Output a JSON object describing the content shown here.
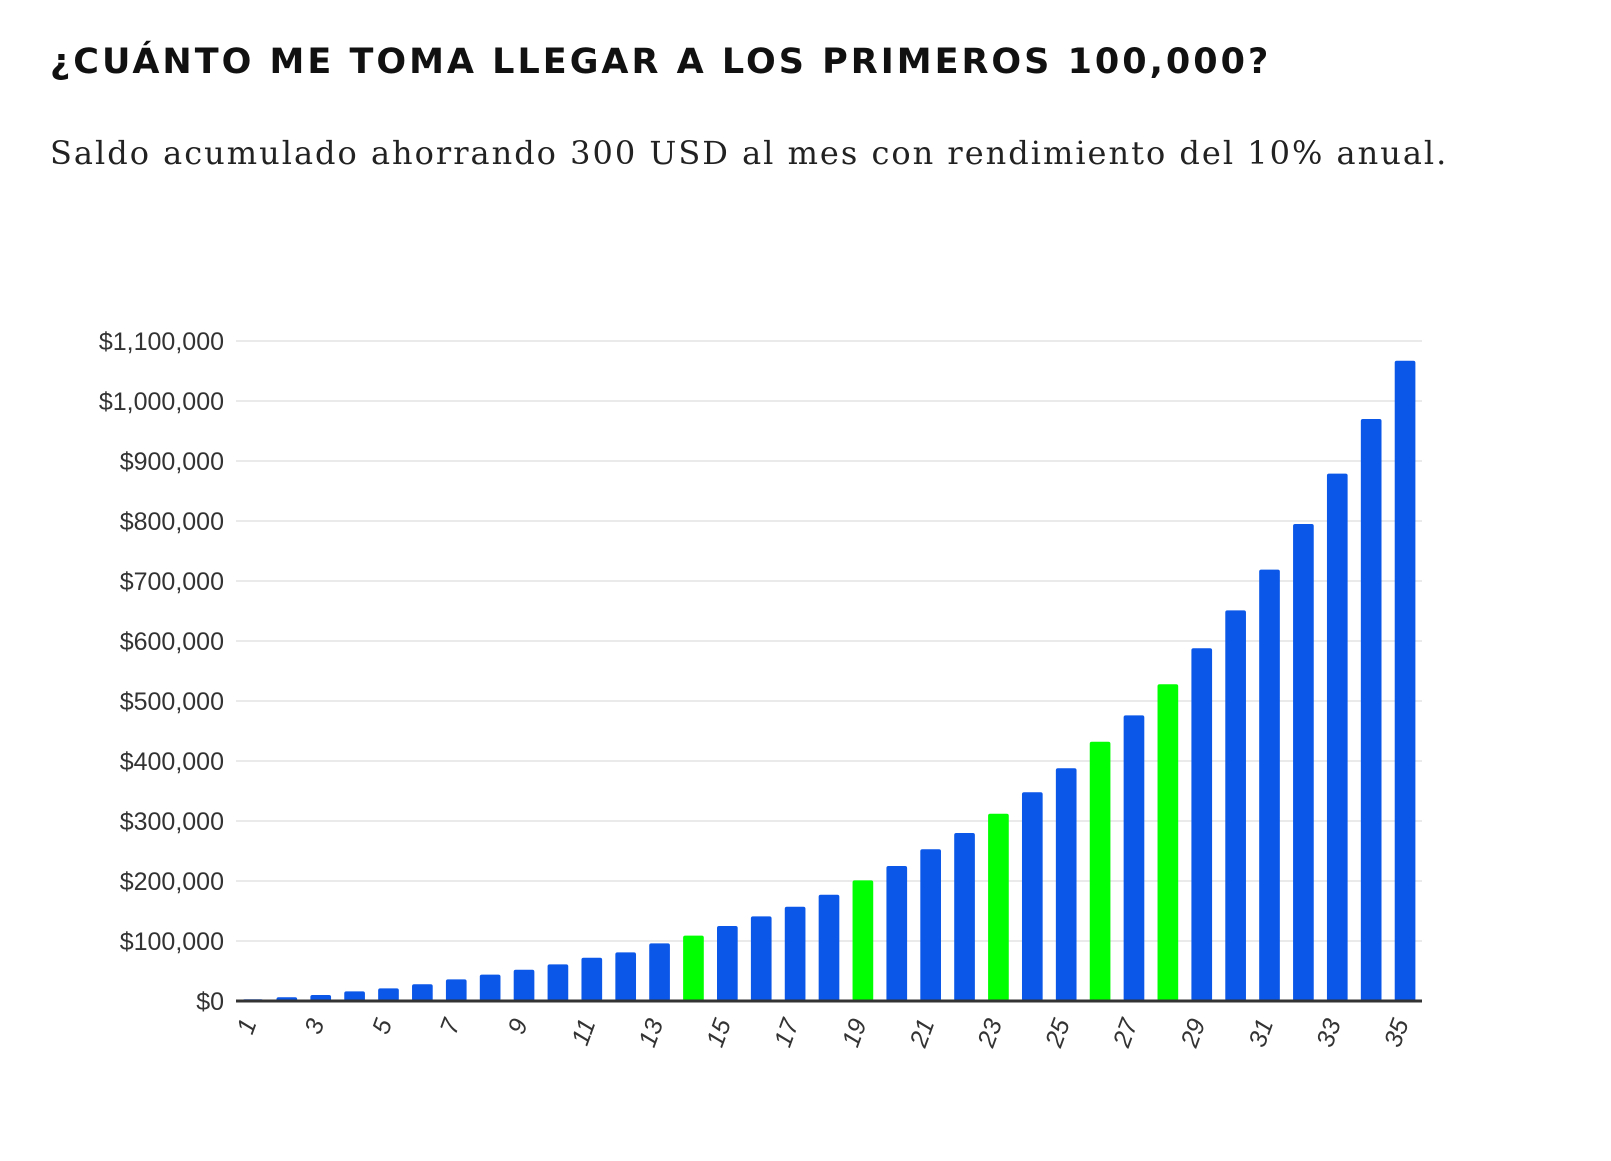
{
  "header": {
    "title": "¿CUÁNTO ME TOMA LLEGAR A LOS PRIMEROS 100,000?",
    "subtitle": "Saldo acumulado ahorrando 300 USD al mes con rendimiento del 10% anual."
  },
  "chart_data": {
    "type": "bar",
    "title": "",
    "xlabel": "",
    "ylabel": "",
    "categories": [
      1,
      2,
      3,
      4,
      5,
      6,
      7,
      8,
      9,
      10,
      11,
      12,
      13,
      14,
      15,
      16,
      17,
      18,
      19,
      20,
      21,
      22,
      23,
      24,
      25,
      26,
      27,
      28,
      29,
      30,
      31,
      32,
      33,
      34,
      35
    ],
    "tick_labels": [
      "1",
      "3",
      "5",
      "7",
      "9",
      "11",
      "13",
      "15",
      "17",
      "19",
      "21",
      "23",
      "25",
      "27",
      "29",
      "31",
      "33",
      "35"
    ],
    "values": [
      3000,
      6300,
      10000,
      16000,
      21000,
      28000,
      36000,
      44000,
      52000,
      61000,
      72000,
      81000,
      96000,
      109000,
      125000,
      141000,
      157000,
      177000,
      201000,
      225000,
      253000,
      280000,
      312000,
      348000,
      388000,
      432000,
      476000,
      528000,
      588000,
      651000,
      719000,
      795000,
      879000,
      970000,
      1067000
    ],
    "highlight_years": [
      14,
      19,
      23,
      26,
      28
    ],
    "ylim": [
      0,
      1100000
    ],
    "yticks": [
      0,
      100000,
      200000,
      300000,
      400000,
      500000,
      600000,
      700000,
      800000,
      900000,
      1000000,
      1100000
    ],
    "ytick_labels": [
      "$0",
      "$100,000",
      "$200,000",
      "$300,000",
      "$400,000",
      "$500,000",
      "$600,000",
      "$700,000",
      "$800,000",
      "$900,000",
      "$1,000,000",
      "$1,100,000"
    ],
    "grid": true,
    "legend": "none",
    "colors": {
      "bar": "#0a57e8",
      "highlight": "#00ff00",
      "grid": "#eaeaea",
      "axis": "#333333",
      "text": "#333333"
    }
  }
}
